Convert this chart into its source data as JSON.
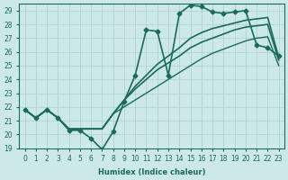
{
  "xlabel": "Humidex (Indice chaleur)",
  "ylabel": "",
  "bg_color": "#cce8e8",
  "line_color": "#1a6b5a",
  "grid_color": "#aacfcf",
  "xlim": [
    -0.5,
    23.5
  ],
  "ylim": [
    19,
    29.5
  ],
  "yticks": [
    19,
    20,
    21,
    22,
    23,
    24,
    25,
    26,
    27,
    28,
    29
  ],
  "xticks": [
    0,
    1,
    2,
    3,
    4,
    5,
    6,
    7,
    8,
    9,
    10,
    11,
    12,
    13,
    14,
    15,
    16,
    17,
    18,
    19,
    20,
    21,
    22,
    23
  ],
  "lines": [
    {
      "x": [
        0,
        1,
        2,
        3,
        4,
        5,
        6,
        7,
        8,
        9,
        10,
        11,
        12,
        13,
        14,
        15,
        16,
        17,
        18,
        19,
        20,
        21,
        22,
        23
      ],
      "y": [
        21.8,
        21.2,
        21.8,
        21.2,
        20.3,
        20.3,
        19.7,
        18.9,
        20.2,
        22.4,
        24.3,
        27.6,
        27.5,
        24.3,
        28.8,
        29.4,
        29.3,
        28.9,
        28.8,
        28.9,
        29.0,
        26.5,
        26.3,
        25.7
      ],
      "marker": "D",
      "markersize": 2.5,
      "linewidth": 1.2
    },
    {
      "x": [
        0,
        1,
        2,
        3,
        4,
        5,
        6,
        7,
        8,
        9,
        10,
        11,
        12,
        13,
        14,
        15,
        16,
        17,
        18,
        19,
        20,
        21,
        22,
        23
      ],
      "y": [
        21.8,
        21.2,
        21.8,
        21.2,
        20.4,
        20.4,
        20.4,
        20.4,
        21.5,
        22.5,
        23.5,
        24.3,
        25.1,
        25.7,
        26.3,
        27.0,
        27.4,
        27.7,
        27.9,
        28.1,
        28.3,
        28.4,
        28.5,
        25.6
      ],
      "marker": null,
      "markersize": 0,
      "linewidth": 1.2
    },
    {
      "x": [
        0,
        1,
        2,
        3,
        4,
        5,
        6,
        7,
        8,
        9,
        10,
        11,
        12,
        13,
        14,
        15,
        16,
        17,
        18,
        19,
        20,
        21,
        22,
        23
      ],
      "y": [
        21.8,
        21.2,
        21.8,
        21.2,
        20.4,
        20.4,
        20.4,
        20.4,
        21.5,
        22.5,
        23.3,
        24.0,
        24.7,
        25.2,
        25.7,
        26.3,
        26.7,
        27.0,
        27.3,
        27.6,
        27.8,
        27.9,
        28.0,
        25.4
      ],
      "marker": null,
      "markersize": 0,
      "linewidth": 1.2
    },
    {
      "x": [
        0,
        1,
        2,
        3,
        4,
        5,
        6,
        7,
        8,
        9,
        10,
        11,
        12,
        13,
        14,
        15,
        16,
        17,
        18,
        19,
        20,
        21,
        22,
        23
      ],
      "y": [
        21.8,
        21.2,
        21.8,
        21.2,
        20.4,
        20.4,
        20.4,
        20.4,
        21.5,
        22.0,
        22.5,
        23.0,
        23.5,
        24.0,
        24.5,
        25.0,
        25.5,
        25.9,
        26.2,
        26.5,
        26.8,
        27.0,
        27.1,
        25.0
      ],
      "marker": null,
      "markersize": 0,
      "linewidth": 1.0
    }
  ]
}
